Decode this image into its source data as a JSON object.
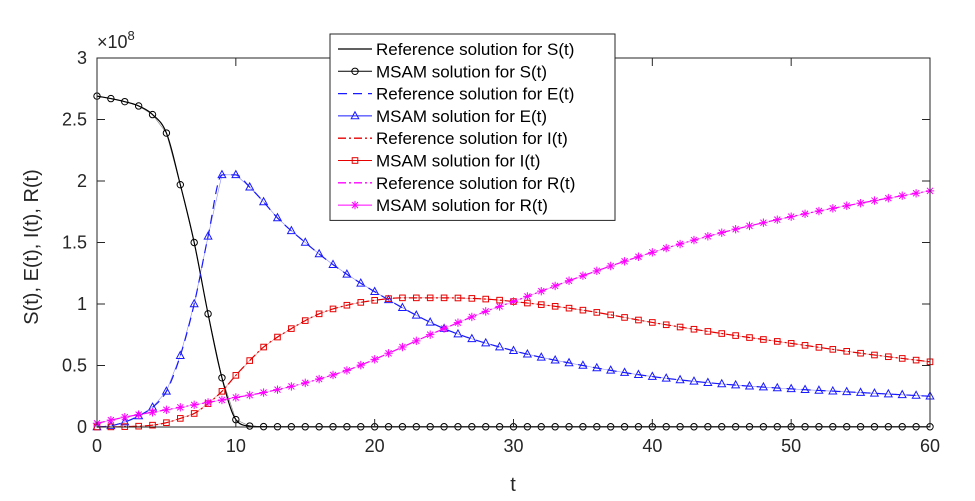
{
  "chart_data": {
    "type": "line",
    "xlabel": "t",
    "ylabel": "S(t), E(t), I(t), R(t)",
    "exponent_label": "×10",
    "exponent_power": "8",
    "xlim": [
      0,
      60
    ],
    "ylim": [
      0,
      3
    ],
    "y_scale": 100000000,
    "xticks": [
      0,
      10,
      20,
      30,
      40,
      50,
      60
    ],
    "yticks": [
      0,
      0.5,
      1,
      1.5,
      2,
      2.5,
      3
    ],
    "xtick_labels": [
      "0",
      "10",
      "20",
      "30",
      "40",
      "50",
      "60"
    ],
    "ytick_labels": [
      "0",
      "0.5",
      "1",
      "1.5",
      "2",
      "2.5",
      "3"
    ],
    "grid": false,
    "legend_position": "top-center",
    "series": [
      {
        "name": "Reference solution for S(t)",
        "color": "#000000",
        "dash": "",
        "marker": "none"
      },
      {
        "name": "MSAM solution for S(t)",
        "color": "#000000",
        "dash": "",
        "marker": "circle"
      },
      {
        "name": "Reference solution for E(t)",
        "color": "#1a1aff",
        "dash": "9,6",
        "marker": "none"
      },
      {
        "name": "MSAM solution for E(t)",
        "color": "#1a1aff",
        "dash": "",
        "marker": "triangle"
      },
      {
        "name": "Reference solution for I(t)",
        "color": "#e60000",
        "dash": "8,3,2,3",
        "marker": "none"
      },
      {
        "name": "MSAM solution for I(t)",
        "color": "#e60000",
        "dash": "",
        "marker": "square"
      },
      {
        "name": "Reference solution for R(t)",
        "color": "#ff00ff",
        "dash": "8,3,2,3",
        "marker": "none"
      },
      {
        "name": "MSAM solution for R(t)",
        "color": "#ff00ff",
        "dash": "",
        "marker": "star"
      }
    ],
    "curves": {
      "S": {
        "x": [
          0,
          1,
          2,
          3,
          4,
          5,
          6,
          7,
          8,
          9,
          10,
          11,
          12,
          15,
          20,
          30,
          40,
          50,
          60
        ],
        "y": [
          2.69,
          2.67,
          2.645,
          2.61,
          2.54,
          2.39,
          1.97,
          1.5,
          0.92,
          0.4,
          0.06,
          0.008,
          0.003,
          0.002,
          0.002,
          0.002,
          0.002,
          0.002,
          0.002
        ]
      },
      "E": {
        "x": [
          0,
          1,
          2,
          3,
          4,
          5,
          6,
          7,
          8,
          9,
          10,
          11,
          12,
          13,
          15,
          17,
          20,
          25,
          30,
          35,
          40,
          45,
          50,
          55,
          60
        ],
        "y": [
          0.0,
          0.01,
          0.04,
          0.09,
          0.16,
          0.29,
          0.58,
          1.0,
          1.55,
          2.05,
          2.05,
          1.95,
          1.83,
          1.7,
          1.5,
          1.32,
          1.1,
          0.8,
          0.62,
          0.5,
          0.41,
          0.35,
          0.31,
          0.28,
          0.25
        ]
      },
      "I": {
        "x": [
          0,
          2,
          4,
          5,
          6,
          7,
          8,
          9,
          10,
          11,
          12,
          14,
          16,
          18,
          20,
          22,
          25,
          28,
          30,
          35,
          40,
          45,
          50,
          55,
          60
        ],
        "y": [
          0.0,
          0.003,
          0.015,
          0.035,
          0.07,
          0.11,
          0.19,
          0.29,
          0.42,
          0.54,
          0.65,
          0.8,
          0.92,
          0.99,
          1.03,
          1.05,
          1.05,
          1.04,
          1.02,
          0.95,
          0.85,
          0.76,
          0.68,
          0.6,
          0.53
        ]
      },
      "R": {
        "x": [
          0,
          2,
          4,
          6,
          8,
          10,
          12,
          14,
          16,
          18,
          20,
          22,
          25,
          28,
          30,
          35,
          40,
          45,
          50,
          55,
          60
        ],
        "y": [
          0.03,
          0.08,
          0.12,
          0.16,
          0.2,
          0.24,
          0.28,
          0.33,
          0.39,
          0.46,
          0.55,
          0.65,
          0.8,
          0.94,
          1.02,
          1.23,
          1.42,
          1.58,
          1.71,
          1.82,
          1.92
        ]
      }
    },
    "marker_step": 1
  }
}
